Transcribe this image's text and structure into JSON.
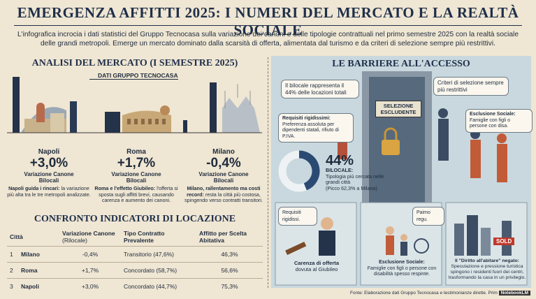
{
  "header": {
    "title": "EMERGENZA AFFITTI 2025: I NUMERI DEL MERCATO E LA REALTÀ SOCIALE",
    "intro": "L'infografica incrocia i dati statistici del Gruppo Tecnocasa sulla variazione dei canoni e delle tipologie contrattuali nel primo semestre 2025 con la realtà sociale delle grandi metropoli. Emerge un mercato dominato dalla scarsità di offerta, alimentata dal turismo e da criteri di selezione sempre più restrittivi."
  },
  "market": {
    "title": "ANALISI DEL MERCATO (I SEMESTRE 2025)",
    "badge": "DATI GRUPPO TECNOCASA",
    "cities": [
      {
        "name": "Napoli",
        "change": "+3,0%",
        "metric": "Variazione Canone Bilocali",
        "lead": "Napoli guida i rincari:",
        "text": "la variazione più alta tra le tre metropoli analizzate."
      },
      {
        "name": "Roma",
        "change": "+1,7%",
        "metric": "Variazione Canone Bilocali",
        "lead": "Roma e l'effetto Giubileo:",
        "text": "l'offerta si sposta sugli affitti brevi, causando carenza e aumento dei canoni."
      },
      {
        "name": "Milano",
        "change": "-0,4%",
        "metric": "Variazione Canone Bilocali",
        "lead": "Milano, rallentamento ma costi record:",
        "text": "resta la città più costosa, spingendo verso contratti transitori."
      }
    ]
  },
  "table": {
    "title": "CONFRONTO INDICATORI DI LOCAZIONE",
    "header": [
      "Città",
      "Variazione Canone",
      "(Rilocale)",
      "Tipo Contratto Prevalente",
      "Affitto per Scelta Abitativa"
    ],
    "rows": [
      [
        "1",
        "Milano",
        "-0,4%",
        "Transitorio (47,6%)",
        "46,3%"
      ],
      [
        "2",
        "Roma",
        "+1,7%",
        "Concordato (58,7%)",
        "56,6%"
      ],
      [
        "3",
        "Napoli",
        "+3,0%",
        "Concordato (44,7%)",
        "75,3%"
      ]
    ]
  },
  "barriers": {
    "title": "LE BARRIERE ALL'ACCESSO",
    "bubbles": [
      "Il bilocale rappresenta il 44% delle locazioni totali",
      "Criteri di selezione sempre più restrittivi"
    ],
    "door_sign": "SELEZIONE ESCLUDENTE",
    "notes": [
      {
        "lead": "Requisiti rigidissimi:",
        "text": "Preferenza assoluta per dipendenti statali, rifiuto di P.IVA."
      },
      {
        "lead": "Esclusione Sociale:",
        "text": "Famiglie con figli o persone con disa."
      }
    ],
    "donut": {
      "value": 44,
      "label": "44%",
      "lead": "BILOCALE:",
      "text": "Tipologia più cercata nelle grandi città",
      "note": "(Picco 62,3% a Milano)"
    },
    "panels": [
      {
        "bubble": "Requisiti rigidissi.",
        "lead": "Carenza di offerta",
        "text": "dovuta al Giubileo"
      },
      {
        "bubble": "Paimo regu.",
        "lead": "Esclusione Sociale:",
        "text": "Famiglie con figli o persone con disabilità spesso respinte."
      },
      {
        "bubble": "SOLD",
        "lead": "Il \"Diritto all'abitare\" negato:",
        "text": "Speculazione e pressione turistica spingono i residenti fuori dei centri, trasformando la casa in un privilegio."
      }
    ]
  },
  "footer": {
    "source": "Fonte: Elaborazione dati Gruppo Tecnocasa e testimonianze dirette. Prim",
    "brand": "NotebookLM"
  }
}
